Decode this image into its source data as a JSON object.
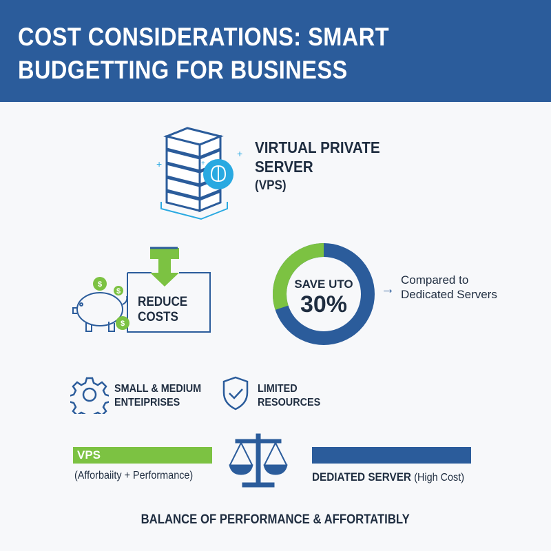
{
  "header": {
    "title_line1": "COST CONSIDERATIONS: SMART",
    "title_line2": "BUDGETTING FOR BUSINESS"
  },
  "vps": {
    "line1": "VIRTUAL PRIVATE",
    "line2": "SERVER",
    "line3": "(VPS)"
  },
  "reduce": {
    "line1": "REDUCE",
    "line2": "COSTS"
  },
  "savings": {
    "label": "SAVE UTO",
    "value": "30%",
    "fraction": 0.3,
    "compare_line1": "Compared to",
    "compare_line2": "Dedicated Servers"
  },
  "features": [
    {
      "line1": "SMALL & MEDIUM",
      "line2": "ENTEIPRISES",
      "icon": "gear-icon"
    },
    {
      "line1": "LIMITED",
      "line2": "RESOURCES",
      "icon": "shield-check-icon"
    }
  ],
  "comparison": {
    "vps_label": "VPS",
    "vps_sub": "(Afforbaiity + Performance)",
    "dedicated_label": "DEDIATED SERVER",
    "dedicated_sub": "(High Cost)"
  },
  "footer": "BALANCE OF PERFORMANCE & AFFORTATIBLY",
  "colors": {
    "primary": "#2b5c9b",
    "accent_green": "#7cc242",
    "light_blue": "#29a9e1",
    "text": "#1f2d40"
  }
}
